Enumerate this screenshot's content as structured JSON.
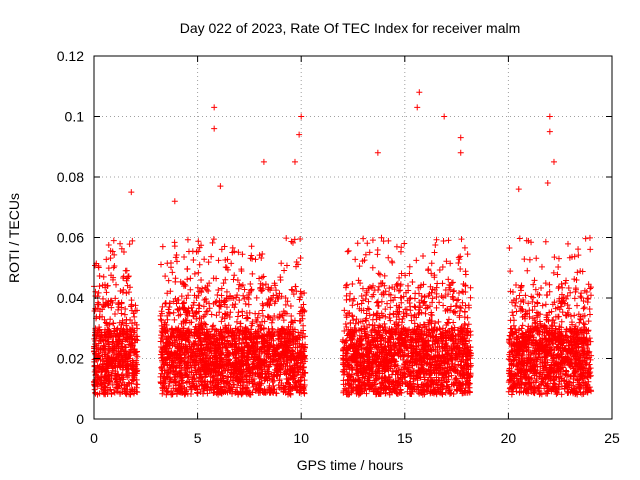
{
  "chart_data": {
    "type": "scatter",
    "title": "Day 022 of 2023, Rate Of TEC Index for receiver malm",
    "xlabel": "GPS time / hours",
    "ylabel": "ROTI / TECUs",
    "xlim": [
      0,
      25
    ],
    "ylim": [
      0,
      0.12
    ],
    "x_ticks": [
      "0",
      "5",
      "10",
      "15",
      "20",
      "25"
    ],
    "y_ticks": [
      "0",
      "0.02",
      "0.04",
      "0.06",
      "0.08",
      "0.1",
      "0.12"
    ],
    "grid": true,
    "marker": "plus",
    "color": "#ff0000",
    "segments": [
      {
        "x_start": 0.0,
        "x_end": 2.1
      },
      {
        "x_start": 3.2,
        "x_end": 10.2
      },
      {
        "x_start": 12.0,
        "x_end": 18.2
      },
      {
        "x_start": 20.0,
        "x_end": 24.0
      }
    ],
    "notable_points": [
      {
        "x": 1.8,
        "y": 0.075
      },
      {
        "x": 3.9,
        "y": 0.072
      },
      {
        "x": 5.8,
        "y": 0.103
      },
      {
        "x": 5.8,
        "y": 0.096
      },
      {
        "x": 6.1,
        "y": 0.077
      },
      {
        "x": 8.2,
        "y": 0.085
      },
      {
        "x": 9.7,
        "y": 0.085
      },
      {
        "x": 10.0,
        "y": 0.1
      },
      {
        "x": 9.9,
        "y": 0.094
      },
      {
        "x": 13.7,
        "y": 0.088
      },
      {
        "x": 15.7,
        "y": 0.108
      },
      {
        "x": 15.6,
        "y": 0.103
      },
      {
        "x": 16.9,
        "y": 0.1
      },
      {
        "x": 17.7,
        "y": 0.093
      },
      {
        "x": 17.7,
        "y": 0.088
      },
      {
        "x": 20.5,
        "y": 0.076
      },
      {
        "x": 22.0,
        "y": 0.1
      },
      {
        "x": 22.0,
        "y": 0.095
      },
      {
        "x": 22.2,
        "y": 0.085
      },
      {
        "x": 21.9,
        "y": 0.078
      }
    ]
  }
}
